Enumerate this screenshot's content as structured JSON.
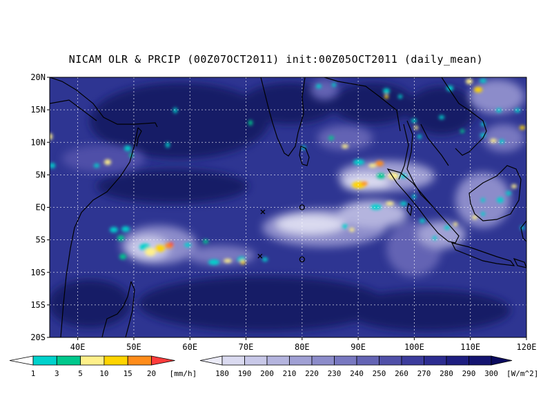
{
  "title": "NICAM OLR & PRCIP (00Z07OCT2011) init:00Z05OCT2011 (daily_mean)",
  "map": {
    "lon_range": [
      35,
      120
    ],
    "lat_range": [
      -20,
      20
    ],
    "lon_ticks": [
      "40E",
      "50E",
      "60E",
      "70E",
      "80E",
      "90E",
      "100E",
      "110E",
      "120E"
    ],
    "lat_ticks": [
      "20N",
      "15N",
      "10N",
      "5N",
      "EQ",
      "5S",
      "10S",
      "15S",
      "20S"
    ],
    "gridlines": true,
    "colors": {
      "ocean_base": "#2e3592",
      "deep": "#161a66",
      "coast": "#000000"
    },
    "markers": [
      {
        "type": "cross",
        "lon": 73,
        "lat": -0.7
      },
      {
        "type": "cross",
        "lon": 72.5,
        "lat": -7.5
      },
      {
        "type": "circle",
        "lon": 80,
        "lat": 0
      },
      {
        "type": "circle",
        "lon": 80,
        "lat": -8
      }
    ]
  },
  "precip_colorbar": {
    "labels": [
      "1",
      "3",
      "5",
      "10",
      "15",
      "20"
    ],
    "unit": "[mm/h]",
    "colors": [
      "#00d2cc",
      "#00c88c",
      "#fff08a",
      "#ffd400",
      "#ff8c1a",
      "#ff3c3c"
    ]
  },
  "olr_colorbar": {
    "labels": [
      "180",
      "190",
      "200",
      "210",
      "220",
      "230",
      "240",
      "250",
      "260",
      "270",
      "280",
      "290",
      "300"
    ],
    "unit": "[W/m^2]",
    "colors": [
      "#ebebf7",
      "#dadaf0",
      "#c8c8e8",
      "#b4b4de",
      "#a0a0d4",
      "#8c8cca",
      "#7878c0",
      "#6464b4",
      "#5050a8",
      "#3c3c9c",
      "#2c2c90",
      "#1e1e80",
      "#141470",
      "#0a0a5e"
    ]
  }
}
